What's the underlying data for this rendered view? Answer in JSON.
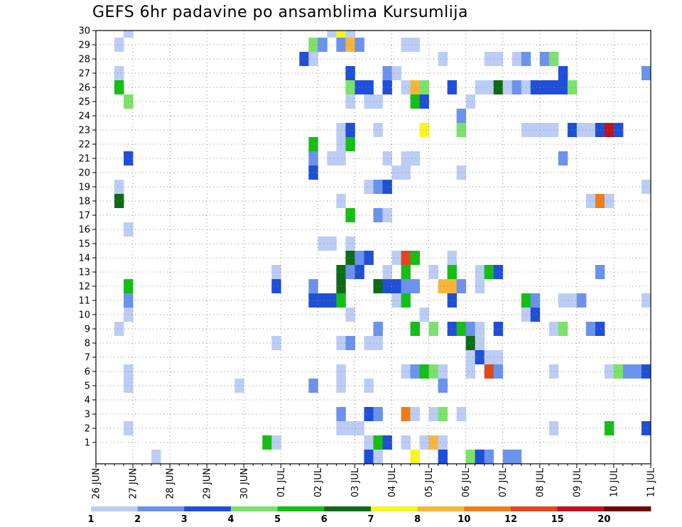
{
  "chart_data": {
    "type": "heatmap",
    "title": "GEFS 6hr padavine po ansamblima Kursumlija",
    "x_tick_labels": [
      "26 JUN",
      "27 JUN",
      "28 JUN",
      "29 JUN",
      "30 JUN",
      "01 JUL",
      "02 JUL",
      "03 JUL",
      "04 JUL",
      "05 JUL",
      "06 JUL",
      "07 JUL",
      "08 JUL",
      "09 JUL",
      "10 JUL",
      "11 JUL"
    ],
    "y_tick_labels": [
      "1",
      "2",
      "3",
      "4",
      "5",
      "6",
      "7",
      "8",
      "9",
      "10",
      "11",
      "12",
      "13",
      "14",
      "15",
      "16",
      "17",
      "18",
      "19",
      "20",
      "21",
      "22",
      "23",
      "24",
      "25",
      "26",
      "27",
      "28",
      "29",
      "30"
    ],
    "x_range_days": [
      0,
      15
    ],
    "steps_per_day": 4,
    "grid": true,
    "legend_placement": "bottom",
    "color_levels": [
      {
        "label": "1",
        "color": "#bccdf5"
      },
      {
        "label": "2",
        "color": "#6b92ec"
      },
      {
        "label": "3",
        "color": "#1f4fd6"
      },
      {
        "label": "4",
        "color": "#7be26a"
      },
      {
        "label": "5",
        "color": "#14bf14"
      },
      {
        "label": "6",
        "color": "#0d6b16"
      },
      {
        "label": "7",
        "color": "#f8f521"
      },
      {
        "label": "8",
        "color": "#f8b53c"
      },
      {
        "label": "10",
        "color": "#f07d1a"
      },
      {
        "label": "12",
        "color": "#e2471b"
      },
      {
        "label": "15",
        "color": "#c1121a"
      },
      {
        "label": "20",
        "color": "#6e0606"
      }
    ],
    "series": [
      {
        "member": 0,
        "cells": [
          [
            6,
            "1"
          ],
          [
            29,
            "3"
          ],
          [
            30,
            "1"
          ],
          [
            34,
            "7"
          ],
          [
            37,
            "3"
          ],
          [
            40,
            "4"
          ],
          [
            41,
            "3"
          ],
          [
            42,
            "2"
          ],
          [
            44,
            "2"
          ],
          [
            45,
            "2"
          ]
        ]
      },
      {
        "member": 1,
        "cells": [
          [
            18,
            "5"
          ],
          [
            19,
            "1"
          ],
          [
            29,
            "1"
          ],
          [
            30,
            "5"
          ],
          [
            31,
            "3"
          ],
          [
            33,
            "1"
          ],
          [
            35,
            "1"
          ],
          [
            36,
            "8"
          ],
          [
            37,
            "1"
          ]
        ]
      },
      {
        "member": 2,
        "cells": [
          [
            3,
            "1"
          ],
          [
            26,
            "1"
          ],
          [
            27,
            "1"
          ],
          [
            28,
            "1"
          ],
          [
            49,
            "1"
          ],
          [
            55,
            "5"
          ],
          [
            59,
            "3"
          ]
        ]
      },
      {
        "member": 3,
        "cells": [
          [
            26,
            "2"
          ],
          [
            29,
            "3"
          ],
          [
            30,
            "2"
          ],
          [
            33,
            "10"
          ],
          [
            34,
            "1"
          ],
          [
            36,
            "1"
          ],
          [
            37,
            "4"
          ],
          [
            39,
            "1"
          ]
        ]
      },
      {
        "member": 5,
        "cells": [
          [
            3,
            "1"
          ],
          [
            15,
            "1"
          ],
          [
            23,
            "2"
          ],
          [
            26,
            "1"
          ],
          [
            29,
            "1"
          ],
          [
            37,
            "2"
          ]
        ]
      },
      {
        "member": 6,
        "cells": [
          [
            3,
            "1"
          ],
          [
            26,
            "1"
          ],
          [
            33,
            "1"
          ],
          [
            34,
            "2"
          ],
          [
            35,
            "5"
          ],
          [
            36,
            "4"
          ],
          [
            37,
            "1"
          ],
          [
            40,
            "1"
          ],
          [
            42,
            "12"
          ],
          [
            43,
            "2"
          ],
          [
            49,
            "1"
          ],
          [
            55,
            "1"
          ],
          [
            56,
            "4"
          ],
          [
            57,
            "2"
          ],
          [
            58,
            "2"
          ],
          [
            59,
            "3"
          ]
        ]
      },
      {
        "member": 7,
        "cells": [
          [
            40,
            "1"
          ],
          [
            41,
            "3"
          ],
          [
            42,
            "1"
          ],
          [
            43,
            "1"
          ]
        ]
      },
      {
        "member": 8,
        "cells": [
          [
            19,
            "1"
          ],
          [
            26,
            "1"
          ],
          [
            27,
            "2"
          ],
          [
            29,
            "1"
          ],
          [
            30,
            "1"
          ],
          [
            40,
            "6"
          ],
          [
            41,
            "1"
          ]
        ]
      },
      {
        "member": 9,
        "cells": [
          [
            2,
            "1"
          ],
          [
            30,
            "2"
          ],
          [
            34,
            "5"
          ],
          [
            36,
            "4"
          ],
          [
            38,
            "3"
          ],
          [
            39,
            "5"
          ],
          [
            40,
            "2"
          ],
          [
            41,
            "1"
          ],
          [
            43,
            "3"
          ],
          [
            49,
            "1"
          ],
          [
            50,
            "4"
          ],
          [
            53,
            "2"
          ],
          [
            54,
            "3"
          ]
        ]
      },
      {
        "member": 10,
        "cells": [
          [
            3,
            "1"
          ],
          [
            27,
            "1"
          ],
          [
            35,
            "1"
          ],
          [
            46,
            "1"
          ],
          [
            47,
            "3"
          ]
        ]
      },
      {
        "member": 11,
        "cells": [
          [
            3,
            "2"
          ],
          [
            23,
            "3"
          ],
          [
            24,
            "3"
          ],
          [
            25,
            "3"
          ],
          [
            26,
            "5"
          ],
          [
            32,
            "1"
          ],
          [
            33,
            "5"
          ],
          [
            38,
            "3"
          ],
          [
            46,
            "5"
          ],
          [
            47,
            "2"
          ],
          [
            50,
            "1"
          ],
          [
            51,
            "1"
          ],
          [
            52,
            "2"
          ],
          [
            59,
            "1"
          ]
        ]
      },
      {
        "member": 12,
        "cells": [
          [
            3,
            "5"
          ],
          [
            19,
            "3"
          ],
          [
            23,
            "2"
          ],
          [
            26,
            "6"
          ],
          [
            30,
            "6"
          ],
          [
            31,
            "3"
          ],
          [
            32,
            "3"
          ],
          [
            33,
            "2"
          ],
          [
            34,
            "2"
          ],
          [
            37,
            "8"
          ],
          [
            38,
            "8"
          ],
          [
            39,
            "2"
          ],
          [
            41,
            "1"
          ]
        ]
      },
      {
        "member": 13,
        "cells": [
          [
            19,
            "1"
          ],
          [
            26,
            "6"
          ],
          [
            27,
            "2"
          ],
          [
            28,
            "3"
          ],
          [
            31,
            "1"
          ],
          [
            33,
            "5"
          ],
          [
            36,
            "1"
          ],
          [
            38,
            "5"
          ],
          [
            41,
            "1"
          ],
          [
            42,
            "5"
          ],
          [
            43,
            "3"
          ],
          [
            54,
            "2"
          ]
        ]
      },
      {
        "member": 14,
        "cells": [
          [
            27,
            "6"
          ],
          [
            28,
            "2"
          ],
          [
            29,
            "3"
          ],
          [
            32,
            "1"
          ],
          [
            33,
            "12"
          ],
          [
            34,
            "5"
          ],
          [
            38,
            "1"
          ]
        ]
      },
      {
        "member": 15,
        "cells": [
          [
            24,
            "1"
          ],
          [
            25,
            "1"
          ],
          [
            27,
            "1"
          ]
        ]
      },
      {
        "member": 16,
        "cells": [
          [
            3,
            "1"
          ]
        ]
      },
      {
        "member": 17,
        "cells": [
          [
            27,
            "5"
          ],
          [
            30,
            "2"
          ],
          [
            31,
            "1"
          ]
        ]
      },
      {
        "member": 18,
        "cells": [
          [
            2,
            "6"
          ],
          [
            26,
            "1"
          ],
          [
            53,
            "1"
          ],
          [
            54,
            "10"
          ],
          [
            55,
            "1"
          ]
        ]
      },
      {
        "member": 19,
        "cells": [
          [
            2,
            "1"
          ],
          [
            29,
            "1"
          ],
          [
            30,
            "2"
          ],
          [
            31,
            "3"
          ],
          [
            59,
            "1"
          ]
        ]
      },
      {
        "member": 20,
        "cells": [
          [
            23,
            "3"
          ],
          [
            32,
            "1"
          ],
          [
            33,
            "1"
          ],
          [
            39,
            "1"
          ]
        ]
      },
      {
        "member": 21,
        "cells": [
          [
            3,
            "3"
          ],
          [
            23,
            "2"
          ],
          [
            25,
            "1"
          ],
          [
            26,
            "1"
          ],
          [
            31,
            "1"
          ],
          [
            33,
            "1"
          ],
          [
            34,
            "1"
          ],
          [
            50,
            "2"
          ]
        ]
      },
      {
        "member": 22,
        "cells": [
          [
            23,
            "5"
          ],
          [
            26,
            "1"
          ],
          [
            27,
            "5"
          ]
        ]
      },
      {
        "member": 23,
        "cells": [
          [
            26,
            "1"
          ],
          [
            27,
            "3"
          ],
          [
            30,
            "1"
          ],
          [
            35,
            "7"
          ],
          [
            39,
            "4"
          ],
          [
            46,
            "1"
          ],
          [
            47,
            "1"
          ],
          [
            48,
            "1"
          ],
          [
            49,
            "1"
          ],
          [
            51,
            "3"
          ],
          [
            52,
            "1"
          ],
          [
            53,
            "1"
          ],
          [
            54,
            "3"
          ],
          [
            55,
            "15"
          ],
          [
            56,
            "3"
          ]
        ]
      },
      {
        "member": 24,
        "cells": [
          [
            39,
            "2"
          ]
        ]
      },
      {
        "member": 25,
        "cells": [
          [
            3,
            "4"
          ],
          [
            27,
            "1"
          ],
          [
            29,
            "1"
          ],
          [
            30,
            "1"
          ],
          [
            34,
            "5"
          ],
          [
            35,
            "3"
          ],
          [
            40,
            "1"
          ]
        ]
      },
      {
        "member": 26,
        "cells": [
          [
            2,
            "5"
          ],
          [
            27,
            "4"
          ],
          [
            28,
            "3"
          ],
          [
            29,
            "3"
          ],
          [
            31,
            "3"
          ],
          [
            33,
            "1"
          ],
          [
            34,
            "8"
          ],
          [
            35,
            "4"
          ],
          [
            38,
            "3"
          ],
          [
            41,
            "1"
          ],
          [
            42,
            "1"
          ],
          [
            43,
            "6"
          ],
          [
            44,
            "1"
          ],
          [
            45,
            "2"
          ],
          [
            46,
            "1"
          ],
          [
            47,
            "3"
          ],
          [
            48,
            "3"
          ],
          [
            49,
            "3"
          ],
          [
            50,
            "3"
          ],
          [
            51,
            "4"
          ]
        ]
      },
      {
        "member": 27,
        "cells": [
          [
            2,
            "1"
          ],
          [
            27,
            "3"
          ],
          [
            31,
            "2"
          ],
          [
            32,
            "1"
          ],
          [
            50,
            "3"
          ],
          [
            59,
            "2"
          ]
        ]
      },
      {
        "member": 28,
        "cells": [
          [
            22,
            "3"
          ],
          [
            23,
            "1"
          ],
          [
            37,
            "1"
          ],
          [
            42,
            "1"
          ],
          [
            43,
            "1"
          ],
          [
            45,
            "1"
          ],
          [
            46,
            "2"
          ],
          [
            48,
            "2"
          ],
          [
            49,
            "4"
          ]
        ]
      },
      {
        "member": 29,
        "cells": [
          [
            2,
            "1"
          ],
          [
            23,
            "4"
          ],
          [
            24,
            "2"
          ],
          [
            26,
            "2"
          ],
          [
            27,
            "8"
          ],
          [
            28,
            "2"
          ],
          [
            33,
            "1"
          ],
          [
            34,
            "1"
          ]
        ]
      },
      {
        "member": 30,
        "cells": [
          [
            3,
            "1"
          ],
          [
            25,
            "1"
          ],
          [
            26,
            "7"
          ],
          [
            27,
            "1"
          ]
        ]
      }
    ]
  }
}
